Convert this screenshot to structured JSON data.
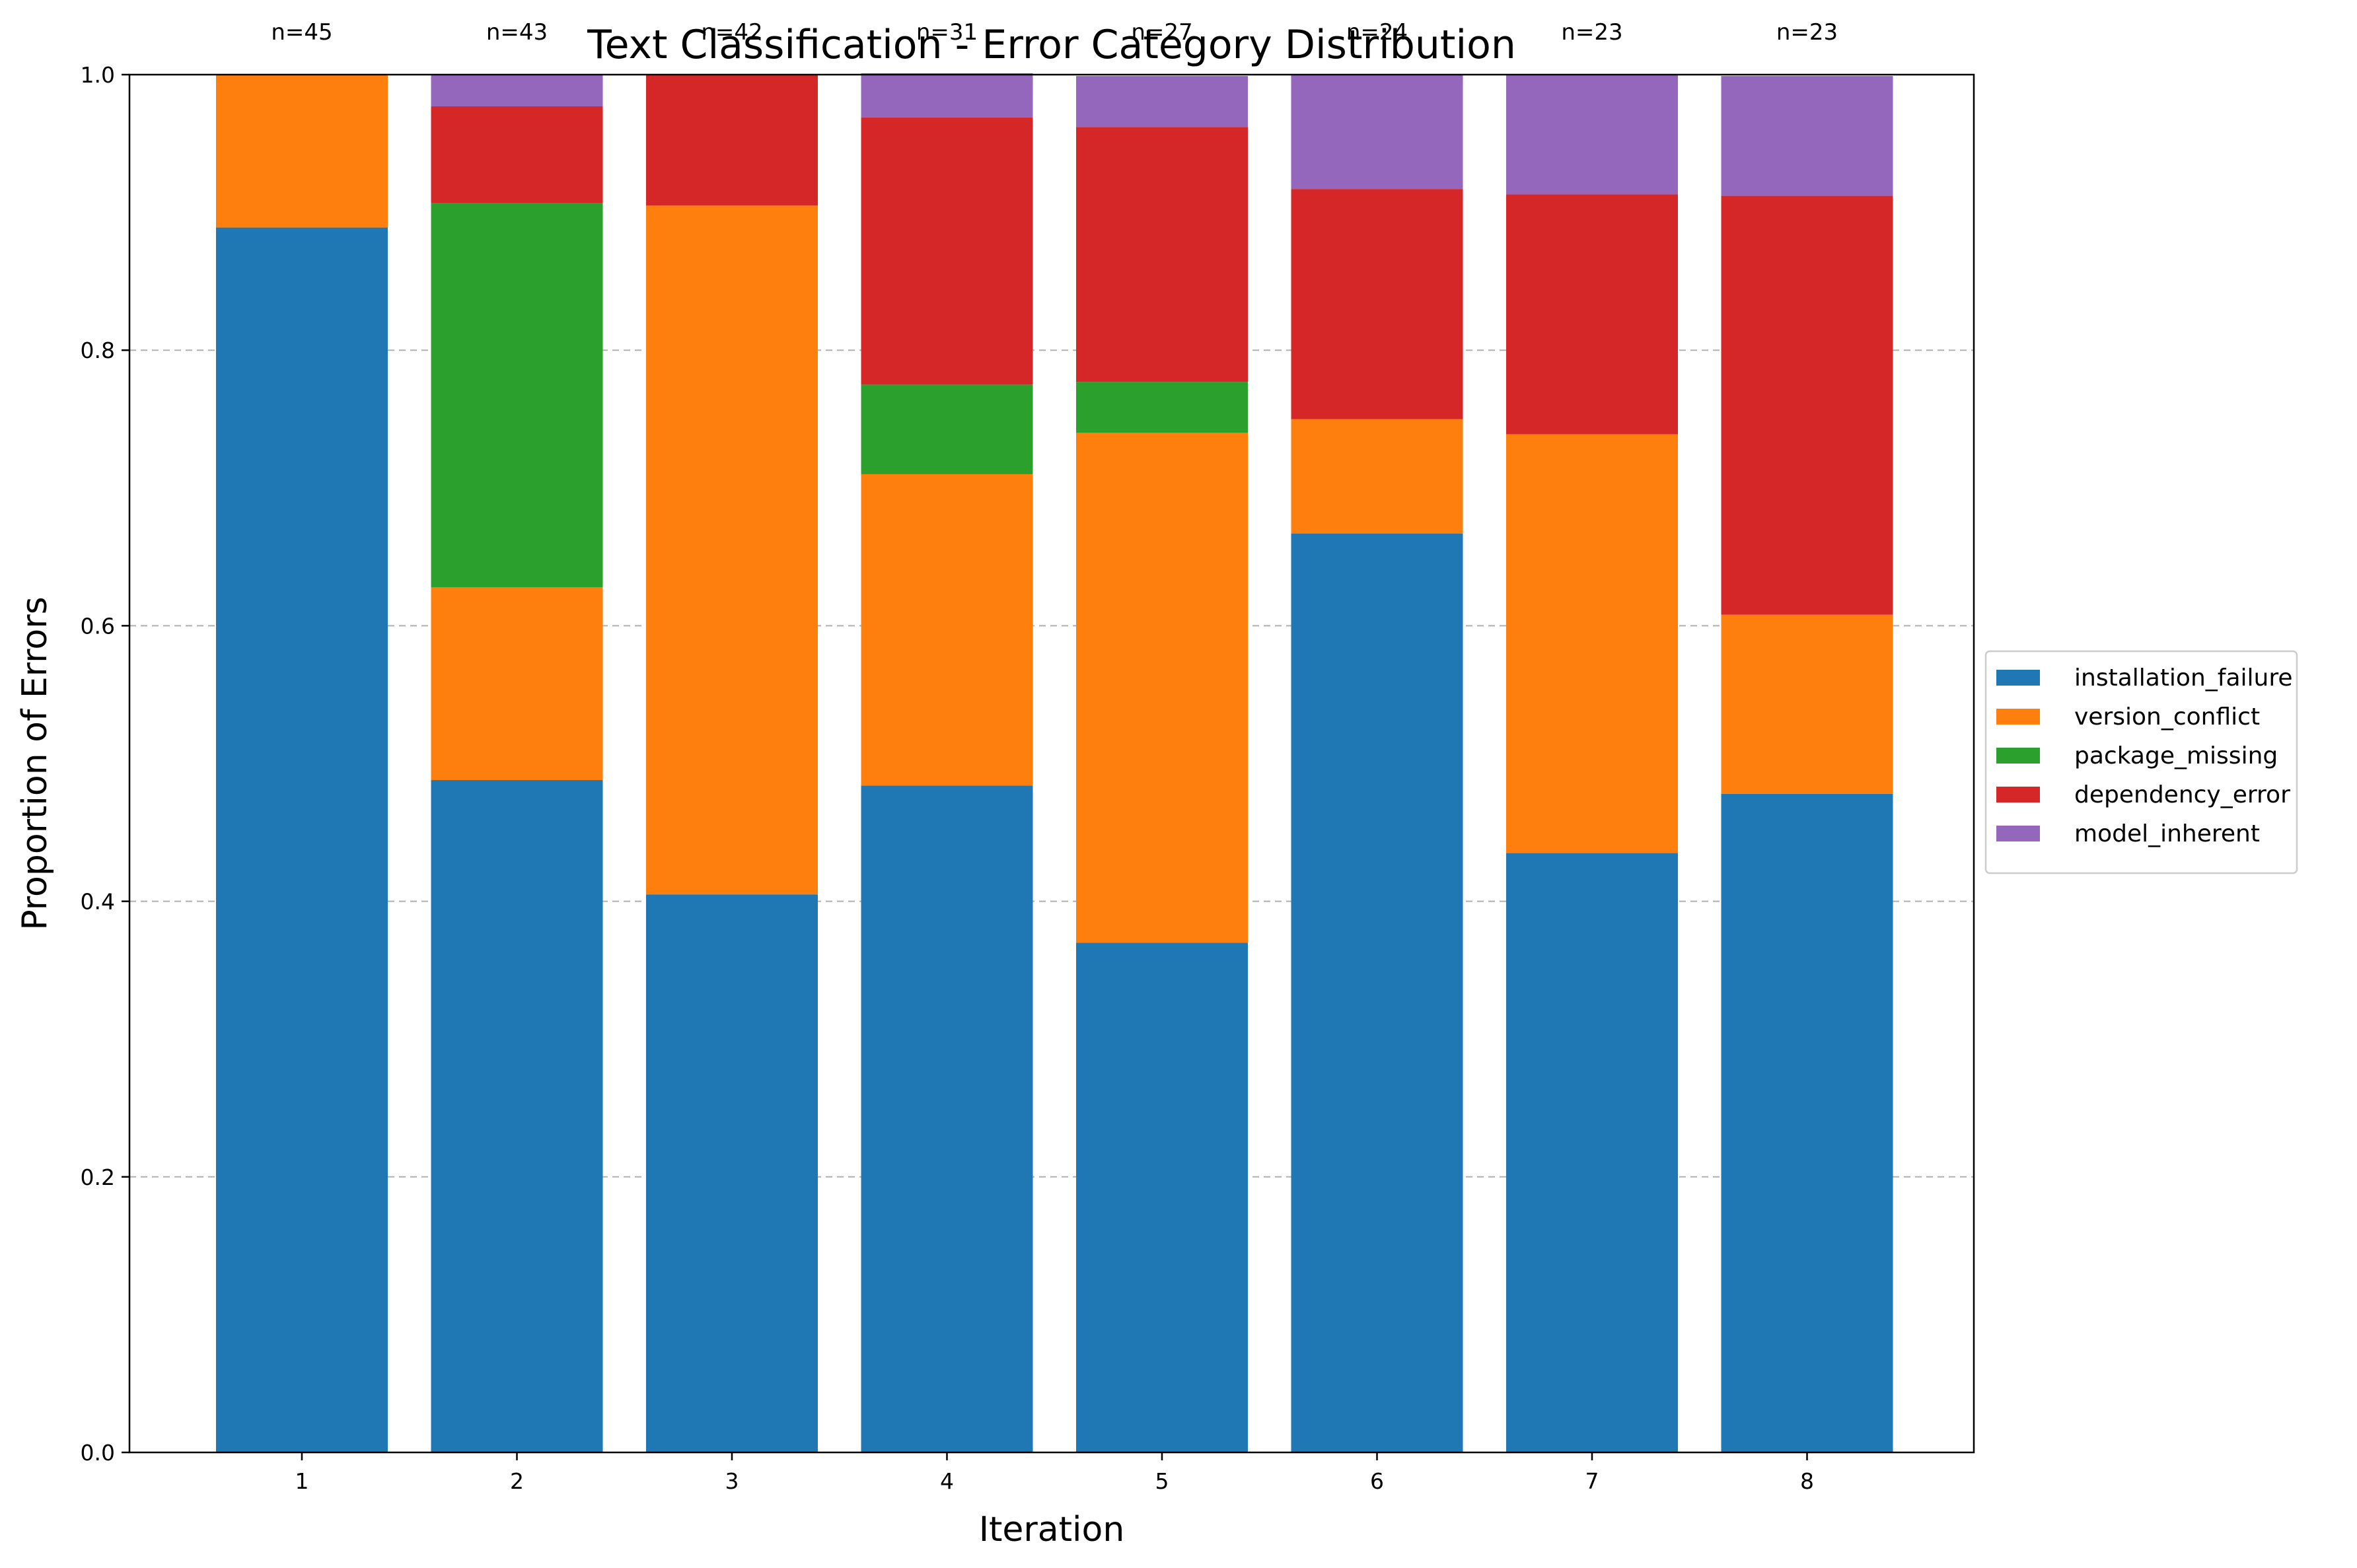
{
  "chart_data": {
    "type": "bar",
    "stacked": true,
    "title": "Text Classification - Error Category Distribution",
    "xlabel": "Iteration",
    "ylabel": "Proportion of Errors",
    "categories": [
      "1",
      "2",
      "3",
      "4",
      "5",
      "6",
      "7",
      "8"
    ],
    "ylim": [
      0,
      1.0
    ],
    "yticks": [
      "0.0",
      "0.2",
      "0.4",
      "0.6",
      "0.8",
      "1.0"
    ],
    "grid": "y-dashed",
    "legend_position": "right",
    "counts": [
      "n=45",
      "n=43",
      "n=42",
      "n=31",
      "n=27",
      "n=24",
      "n=23",
      "n=23"
    ],
    "series": [
      {
        "name": "installation_failure",
        "color": "#1f77b4",
        "values": [
          0.889,
          0.488,
          0.405,
          0.484,
          0.37,
          0.667,
          0.435,
          0.478
        ]
      },
      {
        "name": "version_conflict",
        "color": "#ff7f0e",
        "values": [
          0.111,
          0.14,
          0.5,
          0.226,
          0.37,
          0.083,
          0.304,
          0.13
        ]
      },
      {
        "name": "package_missing",
        "color": "#2ca02c",
        "values": [
          0.0,
          0.279,
          0.0,
          0.065,
          0.037,
          0.0,
          0.0,
          0.0
        ]
      },
      {
        "name": "dependency_error",
        "color": "#d62728",
        "values": [
          0.0,
          0.07,
          0.095,
          0.194,
          0.185,
          0.167,
          0.174,
          0.304
        ]
      },
      {
        "name": "model_inherent",
        "color": "#9467bd",
        "values": [
          0.0,
          0.023,
          0.0,
          0.032,
          0.037,
          0.083,
          0.087,
          0.087
        ]
      }
    ]
  }
}
